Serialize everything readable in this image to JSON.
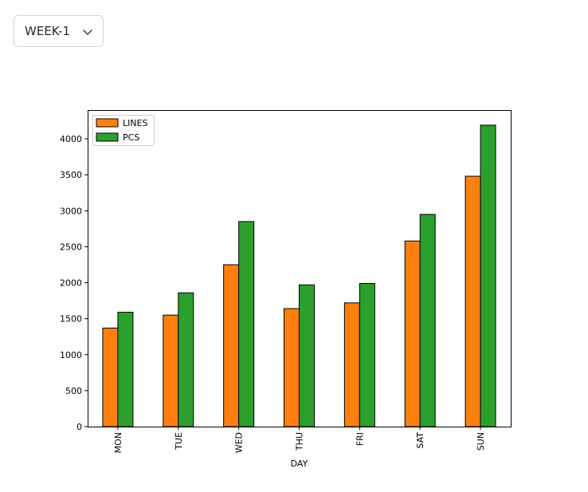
{
  "selector": {
    "value": "WEEK-1",
    "icon": "chevron-down-icon"
  },
  "chart_data": {
    "type": "bar",
    "xlabel": "DAY",
    "ylabel": "",
    "title": "",
    "categories": [
      "MON",
      "TUE",
      "WED",
      "THU",
      "FRI",
      "SAT",
      "SUN"
    ],
    "series": [
      {
        "name": "LINES",
        "color": "#ff7f0e",
        "values": [
          1370,
          1550,
          2250,
          1640,
          1720,
          2580,
          3480
        ]
      },
      {
        "name": "PCS",
        "color": "#2ca02c",
        "values": [
          1590,
          1860,
          2850,
          1970,
          1990,
          2950,
          4190
        ]
      }
    ],
    "yticks": [
      0,
      500,
      1000,
      1500,
      2000,
      2500,
      3000,
      3500,
      4000
    ],
    "ylim": [
      0,
      4400
    ],
    "grid": false,
    "legend": "top-left",
    "bar_edge_color": "#000000"
  }
}
